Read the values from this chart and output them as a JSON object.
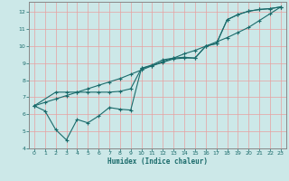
{
  "xlabel": "Humidex (Indice chaleur)",
  "background_color": "#cce8e8",
  "grid_color": "#e8a0a0",
  "line_color": "#1a6b6b",
  "xlim": [
    -0.5,
    23.5
  ],
  "ylim": [
    4,
    12.6
  ],
  "xticks": [
    0,
    1,
    2,
    3,
    4,
    5,
    6,
    7,
    8,
    9,
    10,
    11,
    12,
    13,
    14,
    15,
    16,
    17,
    18,
    19,
    20,
    21,
    22,
    23
  ],
  "yticks": [
    4,
    5,
    6,
    7,
    8,
    9,
    10,
    11,
    12
  ],
  "line1_x": [
    0,
    1,
    2,
    3,
    4,
    5,
    6,
    7,
    8,
    9,
    10,
    11,
    12,
    13,
    14,
    15,
    16,
    17,
    18,
    19,
    20,
    21,
    22,
    23
  ],
  "line1_y": [
    6.5,
    6.7,
    6.9,
    7.1,
    7.3,
    7.5,
    7.7,
    7.9,
    8.1,
    8.35,
    8.6,
    8.85,
    9.1,
    9.3,
    9.55,
    9.75,
    10.0,
    10.25,
    10.5,
    10.8,
    11.1,
    11.5,
    11.9,
    12.3
  ],
  "line2_x": [
    0,
    2,
    3,
    4,
    5,
    6,
    7,
    8,
    9,
    10,
    11,
    12,
    13,
    14,
    15,
    16,
    17,
    18,
    19,
    20,
    21,
    22,
    23
  ],
  "line2_y": [
    6.5,
    7.3,
    7.3,
    7.3,
    7.3,
    7.3,
    7.3,
    7.35,
    7.5,
    8.7,
    8.9,
    9.2,
    9.3,
    9.35,
    9.3,
    10.0,
    10.15,
    11.55,
    11.85,
    12.05,
    12.15,
    12.2,
    12.3
  ],
  "line3_x": [
    0,
    1,
    2,
    3,
    4,
    5,
    6,
    7,
    8,
    9,
    10,
    11,
    12,
    13,
    14,
    15,
    16,
    17,
    18,
    19,
    20,
    21,
    22,
    23
  ],
  "line3_y": [
    6.5,
    6.2,
    5.1,
    4.5,
    5.7,
    5.5,
    5.9,
    6.4,
    6.3,
    6.25,
    8.7,
    8.85,
    9.05,
    9.25,
    9.3,
    9.3,
    10.0,
    10.15,
    11.55,
    11.85,
    12.05,
    12.15,
    12.2,
    12.3
  ]
}
